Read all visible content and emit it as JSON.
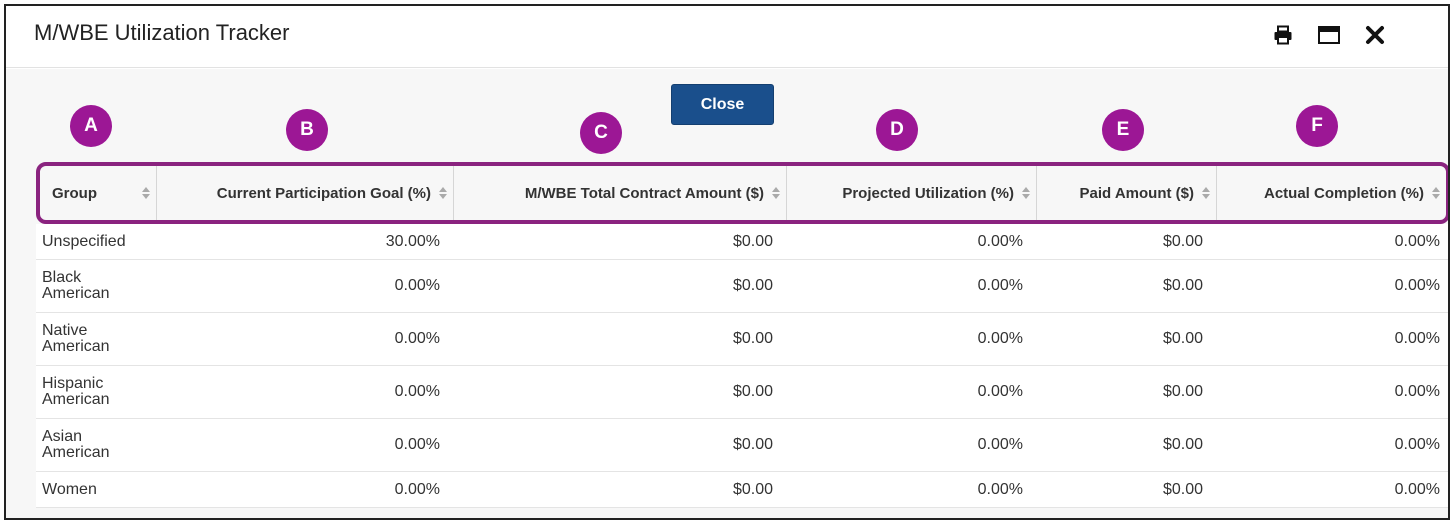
{
  "modal": {
    "title": "M/WBE Utilization Tracker",
    "close_label": "Close",
    "icons": [
      "print-icon",
      "maximize-icon",
      "close-icon"
    ]
  },
  "badges": [
    "A",
    "B",
    "C",
    "D",
    "E",
    "F"
  ],
  "table": {
    "columns": [
      "Group",
      "Current Participation Goal (%)",
      "M/WBE Total Contract Amount ($)",
      "Projected Utilization (%)",
      "Paid Amount ($)",
      "Actual Completion (%)"
    ],
    "rows": [
      {
        "group": "Unspecified",
        "goal": "30.00%",
        "contract": "$0.00",
        "projected": "0.00%",
        "paid": "$0.00",
        "actual": "0.00%"
      },
      {
        "group": "Black American",
        "goal": "0.00%",
        "contract": "$0.00",
        "projected": "0.00%",
        "paid": "$0.00",
        "actual": "0.00%"
      },
      {
        "group": "Native American",
        "goal": "0.00%",
        "contract": "$0.00",
        "projected": "0.00%",
        "paid": "$0.00",
        "actual": "0.00%"
      },
      {
        "group": "Hispanic American",
        "goal": "0.00%",
        "contract": "$0.00",
        "projected": "0.00%",
        "paid": "$0.00",
        "actual": "0.00%"
      },
      {
        "group": "Asian American",
        "goal": "0.00%",
        "contract": "$0.00",
        "projected": "0.00%",
        "paid": "$0.00",
        "actual": "0.00%"
      },
      {
        "group": "Women",
        "goal": "0.00%",
        "contract": "$0.00",
        "projected": "0.00%",
        "paid": "$0.00",
        "actual": "0.00%"
      }
    ]
  },
  "colors": {
    "accent_badge": "#9c1795",
    "highlight_border": "#8a237f",
    "close_button": "#1a4f8c"
  }
}
